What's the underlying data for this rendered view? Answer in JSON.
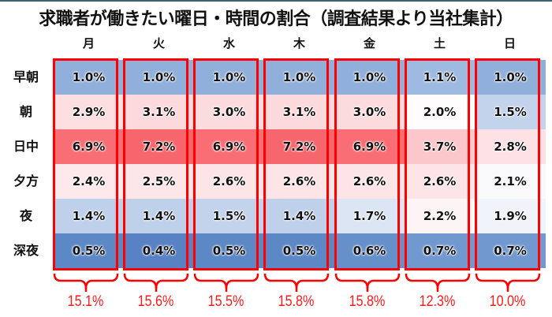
{
  "title": "求職者が働きたい曜日・時間の割合（調査結果より当社集計）",
  "days": [
    "月",
    "火",
    "水",
    "木",
    "金",
    "土",
    "日"
  ],
  "time_slots": [
    "早朝",
    "朝",
    "日中",
    "夕方",
    "夜",
    "深夜"
  ],
  "cells": [
    [
      "1.0%",
      "1.0%",
      "1.0%",
      "1.0%",
      "1.0%",
      "1.1%",
      "1.0%"
    ],
    [
      "2.9%",
      "3.1%",
      "3.0%",
      "3.1%",
      "3.0%",
      "2.0%",
      "1.5%"
    ],
    [
      "6.9%",
      "7.2%",
      "6.9%",
      "7.2%",
      "6.9%",
      "3.7%",
      "2.8%"
    ],
    [
      "2.4%",
      "2.5%",
      "2.6%",
      "2.6%",
      "2.6%",
      "2.6%",
      "2.1%"
    ],
    [
      "1.4%",
      "1.4%",
      "1.5%",
      "1.4%",
      "1.7%",
      "2.2%",
      "1.9%"
    ],
    [
      "0.5%",
      "0.4%",
      "0.5%",
      "0.5%",
      "0.6%",
      "0.7%",
      "0.7%"
    ]
  ],
  "colors": [
    [
      "#90afda",
      "#90afda",
      "#90afda",
      "#90afda",
      "#90afda",
      "#9fbae0",
      "#90afda"
    ],
    [
      "#fcdde0",
      "#fcd9dc",
      "#fcdbde",
      "#fcd9dc",
      "#fcdbde",
      "#fefcfc",
      "#c3d3eb"
    ],
    [
      "#f86e74",
      "#f7666c",
      "#f86e74",
      "#f7666c",
      "#f86e74",
      "#fbc7cb",
      "#fde1e4"
    ],
    [
      "#fde9eb",
      "#fde6e8",
      "#fde4e6",
      "#fde4e6",
      "#fde4e6",
      "#fde4e6",
      "#f9f9fc"
    ],
    [
      "#bed0ea",
      "#bed0ea",
      "#c3d3eb",
      "#bed0ea",
      "#dce5f3",
      "#fdf4f5",
      "#f0f3fa"
    ],
    [
      "#5d88c6",
      "#5882c3",
      "#5d88c6",
      "#5d88c6",
      "#6690ca",
      "#7299cf",
      "#7299cf"
    ]
  ],
  "totals": [
    "15.1%",
    "15.6%",
    "15.5%",
    "15.8%",
    "15.8%",
    "12.3%",
    "10.0%"
  ],
  "accent_color": "#ff0000",
  "chart_data": {
    "type": "heatmap",
    "title": "求職者が働きたい曜日・時間の割合（調査結果より当社集計）",
    "x": [
      "月",
      "火",
      "水",
      "木",
      "金",
      "土",
      "日"
    ],
    "y": [
      "早朝",
      "朝",
      "日中",
      "夕方",
      "夜",
      "深夜"
    ],
    "values": [
      [
        1.0,
        1.0,
        1.0,
        1.0,
        1.0,
        1.1,
        1.0
      ],
      [
        2.9,
        3.1,
        3.0,
        3.1,
        3.0,
        2.0,
        1.5
      ],
      [
        6.9,
        7.2,
        6.9,
        7.2,
        6.9,
        3.7,
        2.8
      ],
      [
        2.4,
        2.5,
        2.6,
        2.6,
        2.6,
        2.6,
        2.1
      ],
      [
        1.4,
        1.4,
        1.5,
        1.4,
        1.7,
        2.2,
        1.9
      ],
      [
        0.5,
        0.4,
        0.5,
        0.5,
        0.6,
        0.7,
        0.7
      ]
    ],
    "unit": "%",
    "column_totals": [
      15.1,
      15.6,
      15.5,
      15.8,
      15.8,
      12.3,
      10.0
    ],
    "color_scale": "blue (low) - white - red (high)",
    "annotations": "Each weekday column outlined in red with a brace and column total below"
  }
}
